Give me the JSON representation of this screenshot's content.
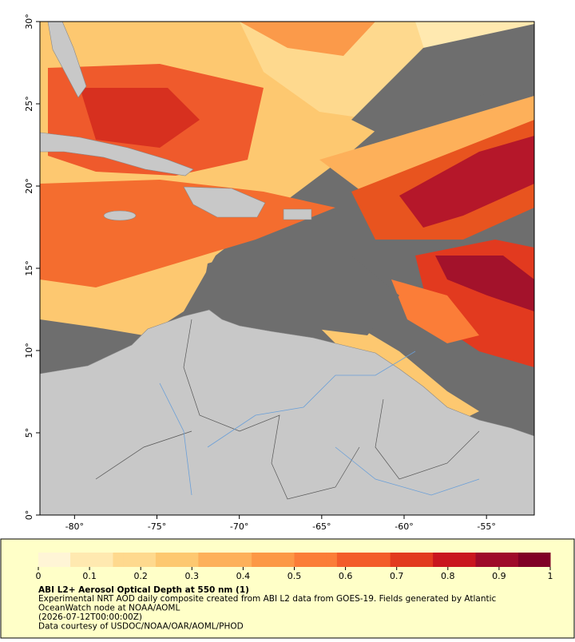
{
  "map": {
    "xlim": [
      -82.1,
      -52.1
    ],
    "ylim": [
      0,
      30
    ],
    "yticks": [
      {
        "value": 0,
        "label": "0°"
      },
      {
        "value": 5,
        "label": "5°"
      },
      {
        "value": 10,
        "label": "10°"
      },
      {
        "value": 15,
        "label": "15°"
      },
      {
        "value": 20,
        "label": "20°"
      },
      {
        "value": 25,
        "label": "25°"
      },
      {
        "value": 30,
        "label": "30°"
      }
    ],
    "xticks": [
      {
        "value": -80,
        "label": "-80°"
      },
      {
        "value": -75,
        "label": "-75°"
      },
      {
        "value": -70,
        "label": "-70°"
      },
      {
        "value": -65,
        "label": "-65°"
      },
      {
        "value": -60,
        "label": "-60°"
      },
      {
        "value": -55,
        "label": "-55°"
      }
    ],
    "colorbar": {
      "range": [
        0,
        1
      ],
      "ticks": [
        0,
        0.1,
        0.2,
        0.3,
        0.4,
        0.5,
        0.6,
        0.7,
        0.8,
        0.9,
        1
      ],
      "colors": [
        "#fff5d6",
        "#ffe9b0",
        "#fed98e",
        "#fdc870",
        "#fdb05a",
        "#fc9846",
        "#fb7d38",
        "#f35c2a",
        "#e23a1f",
        "#c9161f",
        "#9e0a2a",
        "#800026"
      ]
    },
    "caption": {
      "title": "ABI L2+ Aerosol Optical Depth at 550 nm (1)",
      "lines": [
        "Experimental NRT AOD daily composite created from ABI L2 data from GOES-19. Fields generated by Atlantic",
        "OceanWatch node at NOAA/AOML",
        "(2026-07-12T00:00:00Z)",
        "Data courtesy of USDOC/NOAA/OAR/AOML/PHOD"
      ]
    }
  }
}
